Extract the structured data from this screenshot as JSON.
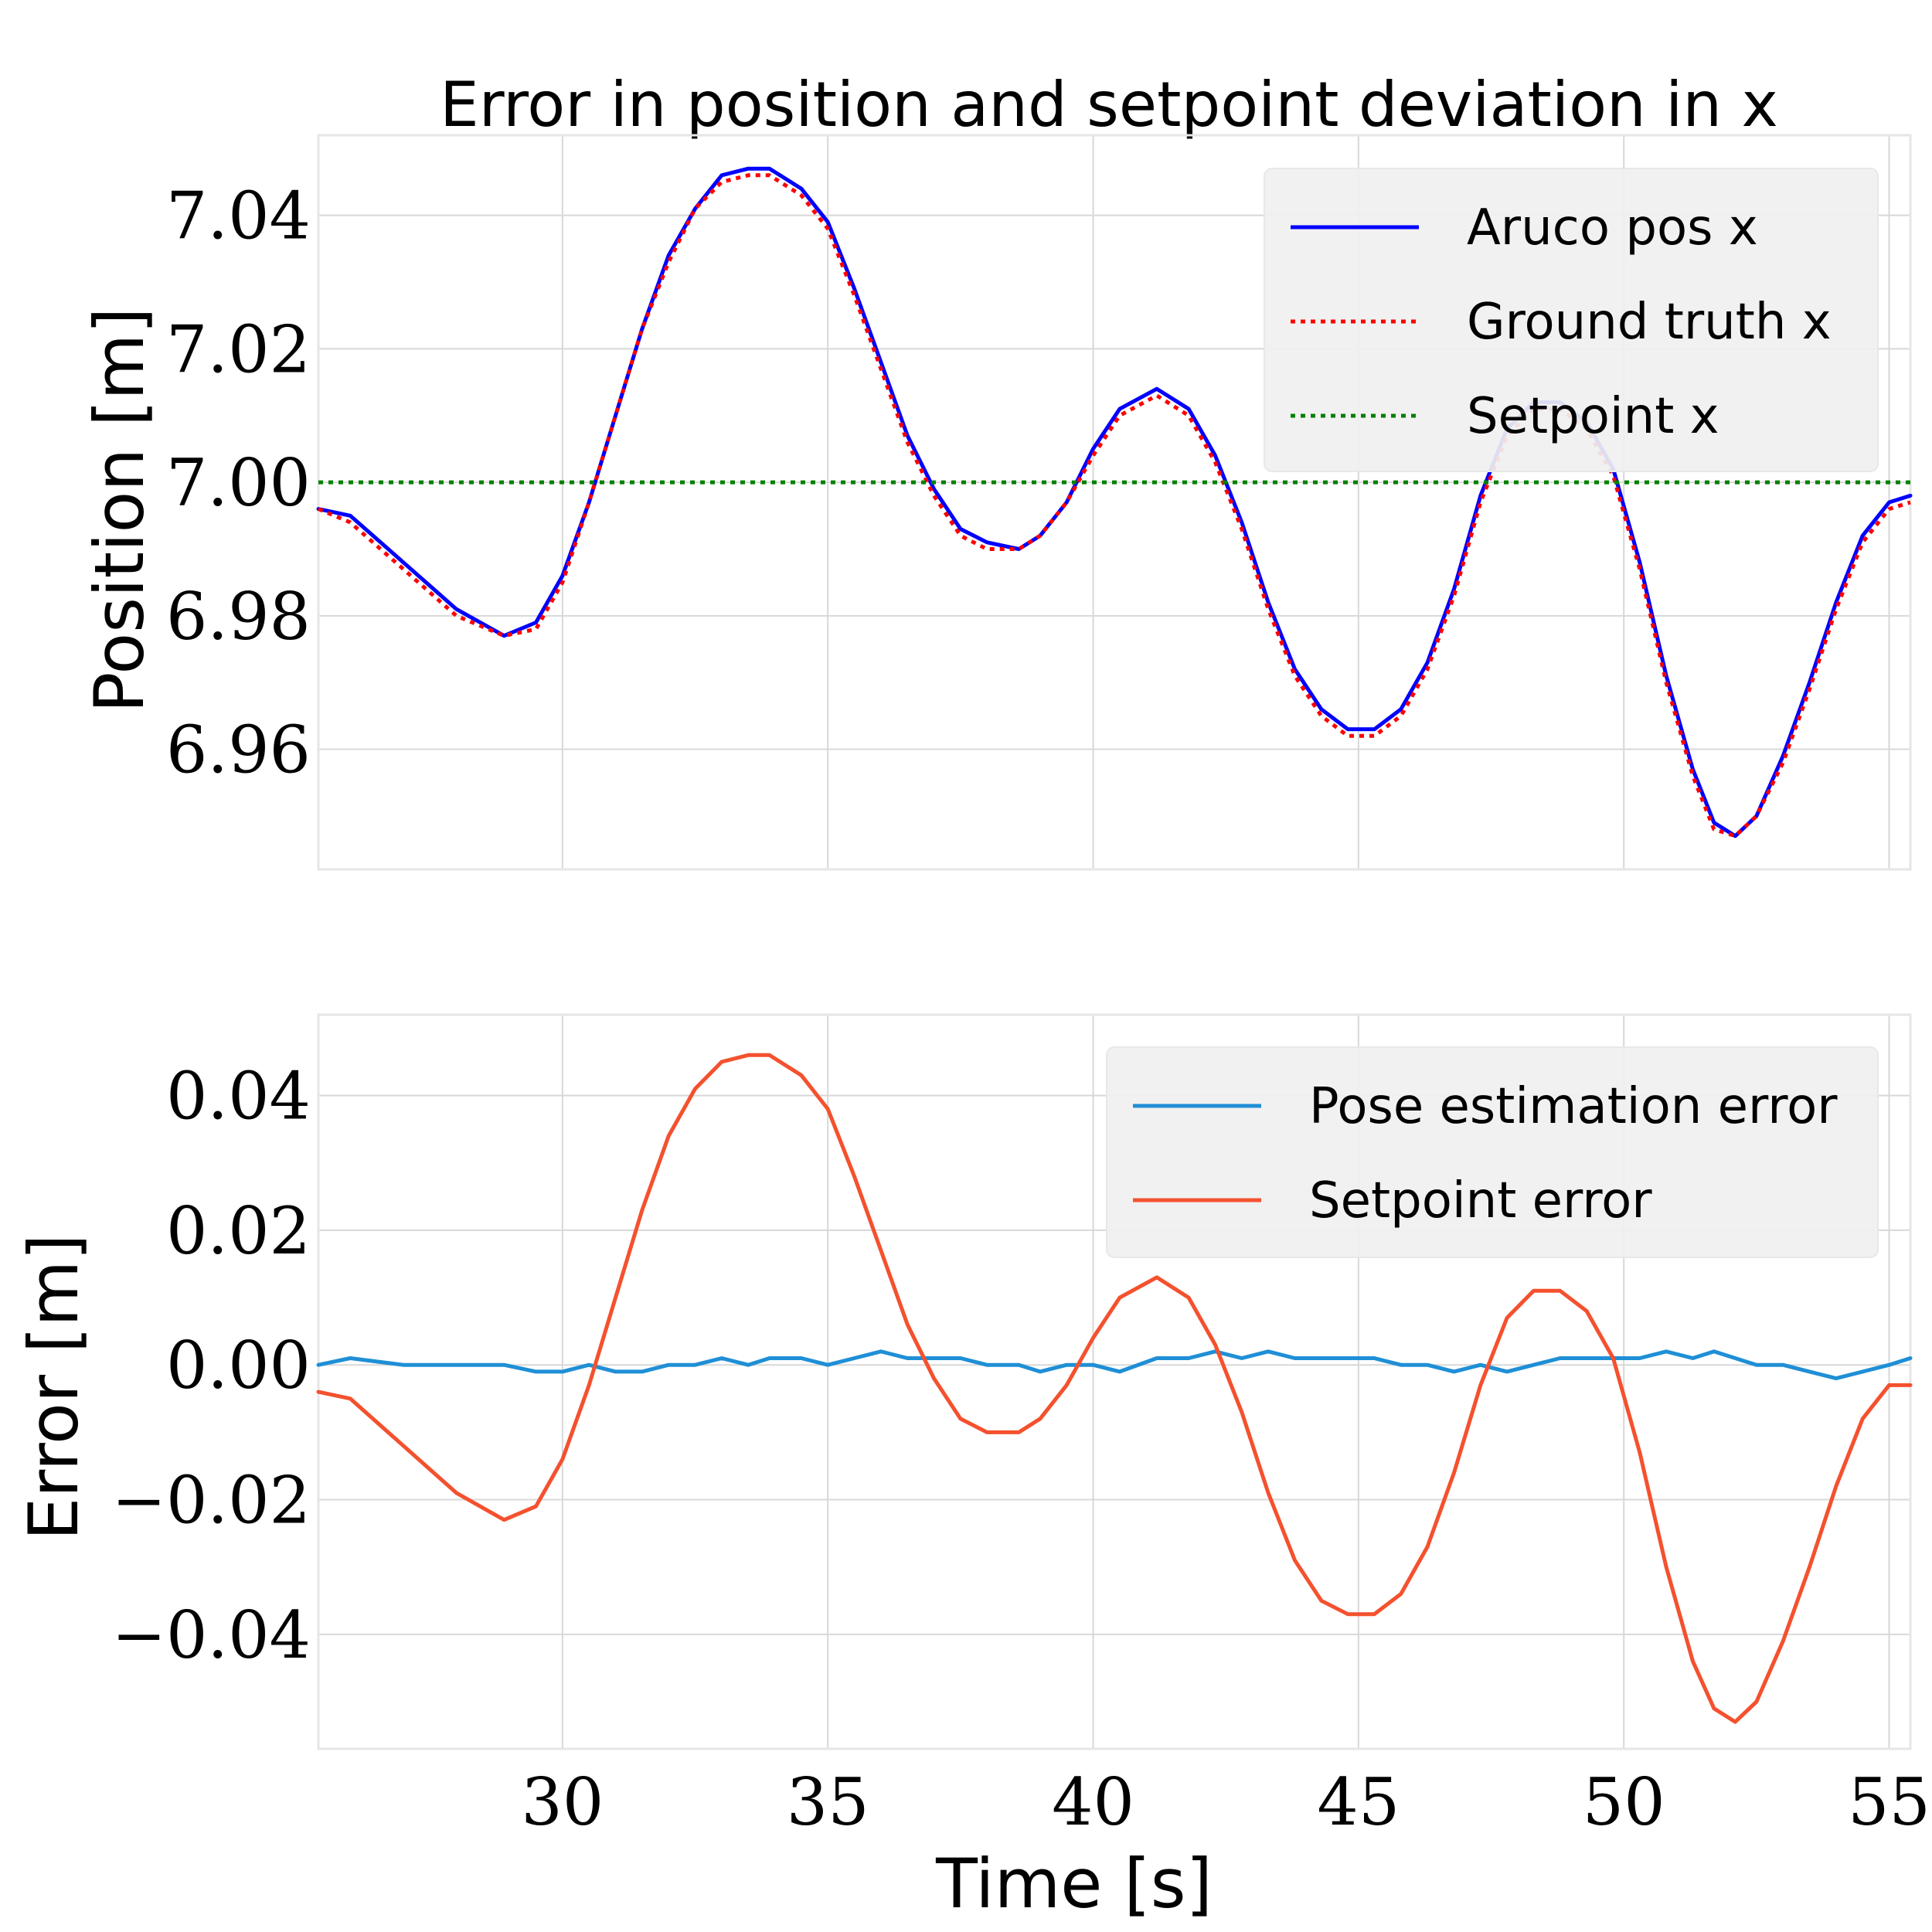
{
  "chart_data": [
    {
      "type": "line",
      "title": "Error in position and setpoint deviation in x",
      "xlabel": "",
      "ylabel": "Position [m]",
      "xlim": [
        25.4,
        55.4
      ],
      "ylim": [
        6.942,
        7.052
      ],
      "xticks": [
        "30",
        "35",
        "40",
        "45",
        "50",
        "55"
      ],
      "xtick_values": [
        30,
        35,
        40,
        45,
        50,
        55
      ],
      "yticks": [
        "6.96",
        "6.98",
        "7.00",
        "7.02",
        "7.04"
      ],
      "ytick_values": [
        6.96,
        6.98,
        7.0,
        7.02,
        7.04
      ],
      "grid": true,
      "legend_position": "upper-right",
      "x": [
        25.4,
        26.0,
        27.0,
        28.0,
        28.9,
        29.5,
        30.0,
        30.5,
        31.0,
        31.5,
        32.0,
        32.5,
        33.0,
        33.5,
        33.9,
        34.5,
        35.0,
        35.5,
        36.0,
        36.5,
        37.0,
        37.5,
        38.0,
        38.6,
        39.0,
        39.5,
        40.0,
        40.5,
        41.2,
        41.8,
        42.3,
        42.8,
        43.3,
        43.8,
        44.3,
        44.8,
        45.3,
        45.8,
        46.3,
        46.8,
        47.3,
        47.8,
        48.3,
        48.8,
        49.3,
        49.8,
        50.3,
        50.8,
        51.3,
        51.7,
        52.1,
        52.5,
        53.0,
        53.5,
        54.0,
        54.5,
        55.0,
        55.4
      ],
      "series": [
        {
          "name": "Aruco pos x",
          "color": "#0000ff",
          "style": "solid",
          "values": [
            6.996,
            6.995,
            6.988,
            6.981,
            6.977,
            6.979,
            6.986,
            6.997,
            7.01,
            7.023,
            7.034,
            7.041,
            7.046,
            7.047,
            7.047,
            7.044,
            7.039,
            7.029,
            7.018,
            7.007,
            6.999,
            6.993,
            6.991,
            6.99,
            6.992,
            6.997,
            7.005,
            7.011,
            7.014,
            7.011,
            7.004,
            6.994,
            6.982,
            6.972,
            6.966,
            6.963,
            6.963,
            6.966,
            6.973,
            6.984,
            6.998,
            7.008,
            7.012,
            7.012,
            7.009,
            7.002,
            6.988,
            6.971,
            6.957,
            6.949,
            6.947,
            6.95,
            6.959,
            6.97,
            6.982,
            6.992,
            6.997,
            6.998
          ]
        },
        {
          "name": "Ground truth x",
          "color": "#ff0000",
          "style": "dotted",
          "values": [
            6.996,
            6.994,
            6.987,
            6.98,
            6.977,
            6.978,
            6.985,
            6.997,
            7.01,
            7.023,
            7.033,
            7.041,
            7.045,
            7.046,
            7.046,
            7.043,
            7.038,
            7.028,
            7.017,
            7.006,
            6.998,
            6.992,
            6.99,
            6.99,
            6.992,
            6.997,
            7.004,
            7.01,
            7.013,
            7.01,
            7.003,
            6.993,
            6.981,
            6.971,
            6.965,
            6.962,
            6.962,
            6.965,
            6.972,
            6.983,
            6.997,
            7.007,
            7.011,
            7.011,
            7.008,
            7.001,
            6.987,
            6.97,
            6.956,
            6.948,
            6.947,
            6.95,
            6.958,
            6.969,
            6.981,
            6.991,
            6.996,
            6.997
          ]
        },
        {
          "name": "Setpoint x",
          "color": "#008000",
          "style": "dotted",
          "values": [
            7.0,
            7.0,
            7.0,
            7.0,
            7.0,
            7.0,
            7.0,
            7.0,
            7.0,
            7.0,
            7.0,
            7.0,
            7.0,
            7.0,
            7.0,
            7.0,
            7.0,
            7.0,
            7.0,
            7.0,
            7.0,
            7.0,
            7.0,
            7.0,
            7.0,
            7.0,
            7.0,
            7.0,
            7.0,
            7.0,
            7.0,
            7.0,
            7.0,
            7.0,
            7.0,
            7.0,
            7.0,
            7.0,
            7.0,
            7.0,
            7.0,
            7.0,
            7.0,
            7.0,
            7.0,
            7.0,
            7.0,
            7.0,
            7.0,
            7.0,
            7.0,
            7.0,
            7.0,
            7.0,
            7.0,
            7.0,
            7.0,
            7.0
          ]
        }
      ]
    },
    {
      "type": "line",
      "title": "",
      "xlabel": "Time [s]",
      "ylabel": "Error [m]",
      "xlim": [
        25.4,
        55.4
      ],
      "ylim": [
        -0.057,
        0.052
      ],
      "xticks": [
        "30",
        "35",
        "40",
        "45",
        "50",
        "55"
      ],
      "xtick_values": [
        30,
        35,
        40,
        45,
        50,
        55
      ],
      "yticks": [
        "−0.04",
        "−0.02",
        "0.00",
        "0.02",
        "0.04"
      ],
      "ytick_values": [
        -0.04,
        -0.02,
        0.0,
        0.02,
        0.04
      ],
      "grid": true,
      "legend_position": "upper-right",
      "x": [
        25.4,
        26.0,
        27.0,
        28.0,
        28.9,
        29.5,
        30.0,
        30.5,
        31.0,
        31.5,
        32.0,
        32.5,
        33.0,
        33.5,
        33.9,
        34.5,
        35.0,
        35.5,
        36.0,
        36.5,
        37.0,
        37.5,
        38.0,
        38.6,
        39.0,
        39.5,
        40.0,
        40.5,
        41.2,
        41.8,
        42.3,
        42.8,
        43.3,
        43.8,
        44.3,
        44.8,
        45.3,
        45.8,
        46.3,
        46.8,
        47.3,
        47.8,
        48.3,
        48.8,
        49.3,
        49.8,
        50.3,
        50.8,
        51.3,
        51.7,
        52.1,
        52.5,
        53.0,
        53.5,
        54.0,
        54.5,
        55.0,
        55.4
      ],
      "series": [
        {
          "name": "Pose estimation error",
          "color": "#1f8fd6",
          "style": "solid",
          "values": [
            0.0,
            0.001,
            0.0,
            0.0,
            0.0,
            -0.001,
            -0.001,
            0.0,
            -0.001,
            -0.001,
            0.0,
            0.0,
            0.001,
            0.0,
            0.001,
            0.001,
            0.0,
            0.001,
            0.002,
            0.001,
            0.001,
            0.001,
            0.0,
            0.0,
            -0.001,
            0.0,
            0.0,
            -0.001,
            0.001,
            0.001,
            0.002,
            0.001,
            0.002,
            0.001,
            0.001,
            0.001,
            0.001,
            0.0,
            0.0,
            -0.001,
            0.0,
            -0.001,
            0.0,
            0.001,
            0.001,
            0.001,
            0.001,
            0.002,
            0.001,
            0.002,
            0.001,
            0.0,
            0.0,
            -0.001,
            -0.002,
            -0.001,
            0.0,
            0.001
          ]
        },
        {
          "name": "Setpoint error",
          "color": "#f4512e",
          "style": "solid",
          "values": [
            -0.004,
            -0.005,
            -0.012,
            -0.019,
            -0.023,
            -0.021,
            -0.014,
            -0.003,
            0.01,
            0.023,
            0.034,
            0.041,
            0.045,
            0.046,
            0.046,
            0.043,
            0.038,
            0.028,
            0.017,
            0.006,
            -0.002,
            -0.008,
            -0.01,
            -0.01,
            -0.008,
            -0.003,
            0.004,
            0.01,
            0.013,
            0.01,
            0.003,
            -0.007,
            -0.019,
            -0.029,
            -0.035,
            -0.037,
            -0.037,
            -0.034,
            -0.027,
            -0.016,
            -0.003,
            0.007,
            0.011,
            0.011,
            0.008,
            0.001,
            -0.013,
            -0.03,
            -0.044,
            -0.051,
            -0.053,
            -0.05,
            -0.041,
            -0.03,
            -0.018,
            -0.008,
            -0.003,
            -0.003
          ]
        }
      ]
    }
  ]
}
